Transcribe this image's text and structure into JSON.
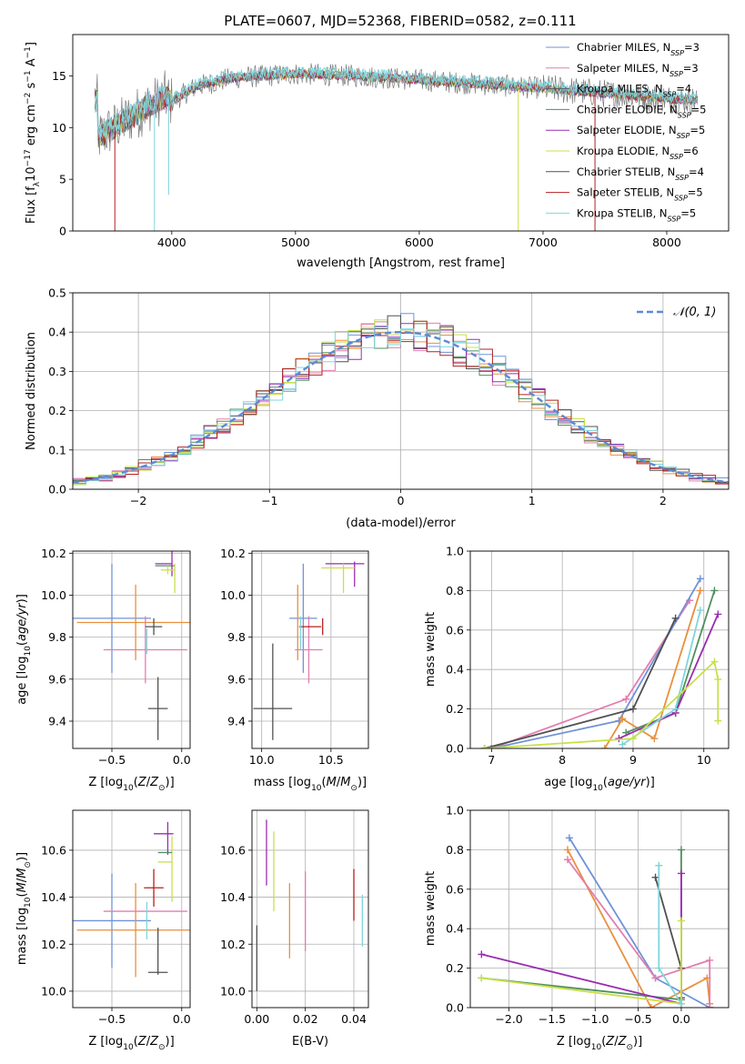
{
  "figure_title": "PLATE=0607, MJD=52368, FIBERID=0582, z=0.111",
  "colors": {
    "Chabrier MILES": "#6f93d8",
    "Salpeter MILES": "#e8903e",
    "Kroupa MILES": "#5a5a5a",
    "Chabrier ELODIE": "#4f8f5f",
    "Salpeter ELODIE": "#9a2db0",
    "Kroupa ELODIE": "#c8e04a",
    "Chabrier STELIB": "#505050",
    "Salpeter STELIB": "#b52020",
    "Kroupa STELIB": "#7fd6dc",
    "pink": "#e37db0",
    "grid": "#b0b0b0"
  },
  "chart_data": [
    {
      "id": "spectrum",
      "type": "line",
      "xlabel": "wavelength [Angstrom, rest frame]",
      "ylabel": "Flux [f_λ 10^-17 erg cm^-2 s^-1 A^-1]",
      "xlim": [
        3200,
        8500
      ],
      "ylim": [
        0,
        19
      ],
      "xticks": [
        4000,
        5000,
        6000,
        7000,
        8000
      ],
      "yticks": [
        0,
        5,
        10,
        15
      ],
      "grid": false,
      "legend_position": "top-right",
      "legend": [
        {
          "label": "Chabrier MILES, N",
          "sub": "SSP",
          "val": "=3",
          "color": "#6f93d8"
        },
        {
          "label": "Salpeter MILES, N",
          "sub": "SSP",
          "val": "=3",
          "color": "#e37db0"
        },
        {
          "label": "Kroupa MILES, N",
          "sub": "SSP",
          "val": "=4",
          "color": "#5a5a5a"
        },
        {
          "label": "Chabrier ELODIE, N",
          "sub": "SSP",
          "val": "=5",
          "color": "#4f8f5f"
        },
        {
          "label": "Salpeter ELODIE, N",
          "sub": "SSP",
          "val": "=5",
          "color": "#9a2db0"
        },
        {
          "label": "Kroupa ELODIE, N",
          "sub": "SSP",
          "val": "=6",
          "color": "#c8e04a"
        },
        {
          "label": "Chabrier STELIB, N",
          "sub": "SSP",
          "val": "=4",
          "color": "#505050"
        },
        {
          "label": "Salpeter STELIB, N",
          "sub": "SSP",
          "val": "=5",
          "color": "#b52020"
        },
        {
          "label": "Kroupa STELIB, N",
          "sub": "SSP",
          "val": "=5",
          "color": "#7fd6dc"
        }
      ],
      "continuum": [
        [
          3400,
          9
        ],
        [
          3600,
          10.5
        ],
        [
          3800,
          12
        ],
        [
          3950,
          13
        ],
        [
          4000,
          12.5
        ],
        [
          4200,
          14
        ],
        [
          4500,
          14.8
        ],
        [
          5000,
          15.2
        ],
        [
          5500,
          15
        ],
        [
          6000,
          14.6
        ],
        [
          6500,
          14.2
        ],
        [
          7000,
          13.8
        ],
        [
          7500,
          13.3
        ],
        [
          8000,
          12.8
        ],
        [
          8250,
          12.6
        ]
      ],
      "dips": [
        {
          "x": 3540,
          "min": 0,
          "color": "#b52020"
        },
        {
          "x": 3860,
          "min": 0,
          "color": "#7fd6dc"
        },
        {
          "x": 3975,
          "min": 3.5,
          "color": "#7fd6dc"
        },
        {
          "x": 6800,
          "min": 0,
          "color": "#c8e04a"
        },
        {
          "x": 7420,
          "min": 0,
          "color": "#b52020"
        }
      ]
    },
    {
      "id": "residuals",
      "type": "bar",
      "xlabel": "(data-model)/error",
      "ylabel": "Normed distribution",
      "xlim": [
        -2.5,
        2.5
      ],
      "ylim": [
        0,
        0.5
      ],
      "xticks": [
        -2,
        -1,
        0,
        1,
        2
      ],
      "yticks": [
        0.0,
        0.1,
        0.2,
        0.3,
        0.4,
        0.5
      ],
      "grid": true,
      "legend_position": "top-right",
      "legend_label": "𝒩(0, 1)",
      "gaussian_color": "#5b8ad6",
      "bin_width": 0.1
    },
    {
      "id": "z_vs_age",
      "type": "scatter",
      "xlabel": "Z [log10(Z/Z⊙)]",
      "ylabel": "age [log10(age/yr)]",
      "xlim": [
        -0.78,
        0.06
      ],
      "ylim": [
        9.27,
        10.21
      ],
      "xticks": [
        -0.5,
        0.0
      ],
      "yticks": [
        9.4,
        9.6,
        9.8,
        10.0,
        10.2
      ],
      "grid": true,
      "points": [
        {
          "x": -0.5,
          "xerr": 0.28,
          "y": 9.89,
          "yerr": 0.26,
          "color": "#6f93d8"
        },
        {
          "x": -0.33,
          "xerr": 0.42,
          "y": 9.87,
          "yerr": 0.18,
          "color": "#e8903e"
        },
        {
          "x": -0.26,
          "xerr": 0.3,
          "y": 9.74,
          "yerr": 0.16,
          "color": "#e37db0"
        },
        {
          "x": -0.25,
          "xerr": 0.0,
          "y": 9.78,
          "yerr": 0.06,
          "color": "#7fd6dc"
        },
        {
          "x": -0.2,
          "xerr": 0.06,
          "y": 9.85,
          "yerr": 0.04,
          "color": "#505050"
        },
        {
          "x": -0.17,
          "xerr": 0.07,
          "y": 9.46,
          "yerr": 0.15,
          "color": "#505050"
        },
        {
          "x": -0.13,
          "xerr": 0.06,
          "y": 10.15,
          "yerr": 0.0,
          "color": "#9a2db0"
        },
        {
          "x": -0.12,
          "xerr": 0.07,
          "y": 10.14,
          "yerr": 0.0,
          "color": "#4f8f5f"
        },
        {
          "x": -0.07,
          "xerr": 0.0,
          "y": 10.15,
          "yerr": 0.06,
          "color": "#9a2db0"
        },
        {
          "x": -0.1,
          "xerr": 0.05,
          "y": 10.12,
          "yerr": 0.02,
          "color": "#c8e04a"
        },
        {
          "x": -0.05,
          "xerr": 0.0,
          "y": 10.08,
          "yerr": 0.07,
          "color": "#c8e04a"
        }
      ]
    },
    {
      "id": "mass_vs_age",
      "type": "scatter",
      "xlabel": "mass [log10(M/M⊙)]",
      "ylabel": "",
      "xlim": [
        9.93,
        10.77
      ],
      "ylim": [
        9.27,
        10.21
      ],
      "xticks": [
        10.0,
        10.5
      ],
      "yticks": [
        9.4,
        9.6,
        9.8,
        10.0,
        10.2
      ],
      "grid": true,
      "points": [
        {
          "x": 10.3,
          "xerr": 0.1,
          "y": 9.89,
          "yerr": 0.26,
          "color": "#6f93d8"
        },
        {
          "x": 10.26,
          "xerr": 0.0,
          "y": 9.87,
          "yerr": 0.18,
          "color": "#e8903e"
        },
        {
          "x": 10.34,
          "xerr": 0.1,
          "y": 9.74,
          "yerr": 0.16,
          "color": "#e37db0"
        },
        {
          "x": 10.35,
          "xerr": 0.08,
          "y": 9.85,
          "yerr": 0.0,
          "color": "#b52020"
        },
        {
          "x": 10.44,
          "xerr": 0.0,
          "y": 9.85,
          "yerr": 0.04,
          "color": "#b52020"
        },
        {
          "x": 10.28,
          "xerr": 0.0,
          "y": 9.82,
          "yerr": 0.08,
          "color": "#7fd6dc"
        },
        {
          "x": 10.08,
          "xerr": 0.14,
          "y": 9.46,
          "yerr": 0.0,
          "color": "#505050"
        },
        {
          "x": 10.08,
          "xerr": 0.0,
          "y": 9.54,
          "yerr": 0.23,
          "color": "#505050"
        },
        {
          "x": 10.6,
          "xerr": 0.14,
          "y": 10.15,
          "yerr": 0.0,
          "color": "#9a2db0"
        },
        {
          "x": 10.67,
          "xerr": 0.0,
          "y": 10.1,
          "yerr": 0.06,
          "color": "#9a2db0"
        },
        {
          "x": 10.55,
          "xerr": 0.12,
          "y": 10.13,
          "yerr": 0.0,
          "color": "#c8e04a"
        },
        {
          "x": 10.59,
          "xerr": 0.0,
          "y": 10.08,
          "yerr": 0.07,
          "color": "#c8e04a"
        }
      ]
    },
    {
      "id": "age_vs_weight",
      "type": "line",
      "xlabel": "age [log10(age/yr)]",
      "ylabel": "mass weight",
      "xlim": [
        6.7,
        10.35
      ],
      "ylim": [
        0.0,
        1.0
      ],
      "xticks": [
        7,
        8,
        9,
        10
      ],
      "yticks": [
        0.0,
        0.2,
        0.4,
        0.6,
        0.8,
        1.0
      ],
      "grid": true,
      "series": [
        {
          "color": "#e37db0",
          "x": [
            7.0,
            8.9,
            9.8
          ],
          "y": [
            0.0,
            0.25,
            0.75
          ]
        },
        {
          "color": "#6f93d8",
          "x": [
            7.0,
            8.8,
            9.95
          ],
          "y": [
            0.0,
            0.14,
            0.86
          ]
        },
        {
          "color": "#e8903e",
          "x": [
            8.6,
            8.85,
            9.3,
            9.95
          ],
          "y": [
            0.0,
            0.15,
            0.05,
            0.8
          ]
        },
        {
          "color": "#505050",
          "x": [
            6.9,
            9.0,
            9.6
          ],
          "y": [
            0.0,
            0.2,
            0.66
          ]
        },
        {
          "color": "#4f8f5f",
          "x": [
            8.9,
            9.6,
            10.15
          ],
          "y": [
            0.08,
            0.18,
            0.8
          ]
        },
        {
          "color": "#9a2db0",
          "x": [
            8.8,
            9.6,
            10.2
          ],
          "y": [
            0.05,
            0.18,
            0.68
          ]
        },
        {
          "color": "#7fd6dc",
          "x": [
            8.85,
            9.6,
            9.95
          ],
          "y": [
            0.02,
            0.2,
            0.7
          ]
        },
        {
          "color": "#c8e04a",
          "x": [
            6.9,
            9.0,
            10.15,
            10.2,
            10.2
          ],
          "y": [
            0.0,
            0.05,
            0.44,
            0.35,
            0.14
          ]
        }
      ]
    },
    {
      "id": "z_vs_mass",
      "type": "scatter",
      "xlabel": "Z [log10(Z/Z⊙)]",
      "ylabel": "mass [log10(M/M⊙)]",
      "xlim": [
        -0.78,
        0.06
      ],
      "ylim": [
        9.93,
        10.77
      ],
      "xticks": [
        -0.5,
        0.0
      ],
      "yticks": [
        10.0,
        10.2,
        10.4,
        10.6
      ],
      "grid": true,
      "points": [
        {
          "x": -0.5,
          "xerr": 0.28,
          "y": 10.3,
          "yerr": 0.2,
          "color": "#6f93d8"
        },
        {
          "x": -0.33,
          "xerr": 0.42,
          "y": 10.26,
          "yerr": 0.2,
          "color": "#e8903e"
        },
        {
          "x": -0.26,
          "xerr": 0.3,
          "y": 10.34,
          "yerr": 0.0,
          "color": "#e37db0"
        },
        {
          "x": -0.25,
          "xerr": 0.0,
          "y": 10.3,
          "yerr": 0.08,
          "color": "#7fd6dc"
        },
        {
          "x": -0.2,
          "xerr": 0.07,
          "y": 10.44,
          "yerr": 0.0,
          "color": "#b52020"
        },
        {
          "x": -0.2,
          "xerr": 0.0,
          "y": 10.44,
          "yerr": 0.08,
          "color": "#b52020"
        },
        {
          "x": -0.17,
          "xerr": 0.07,
          "y": 10.08,
          "yerr": 0.0,
          "color": "#505050"
        },
        {
          "x": -0.17,
          "xerr": 0.0,
          "y": 10.17,
          "yerr": 0.1,
          "color": "#505050"
        },
        {
          "x": -0.13,
          "xerr": 0.07,
          "y": 10.67,
          "yerr": 0.0,
          "color": "#9a2db0"
        },
        {
          "x": -0.1,
          "xerr": 0.0,
          "y": 10.65,
          "yerr": 0.07,
          "color": "#9a2db0"
        },
        {
          "x": -0.12,
          "xerr": 0.05,
          "y": 10.55,
          "yerr": 0.0,
          "color": "#c8e04a"
        },
        {
          "x": -0.07,
          "xerr": 0.0,
          "y": 10.52,
          "yerr": 0.14,
          "color": "#c8e04a"
        },
        {
          "x": -0.12,
          "xerr": 0.05,
          "y": 10.59,
          "yerr": 0.0,
          "color": "#4f8f5f"
        }
      ]
    },
    {
      "id": "ebv_vs_mass",
      "type": "scatter",
      "xlabel": "E(B-V)",
      "ylabel": "",
      "xlim": [
        -0.002,
        0.046
      ],
      "ylim": [
        9.93,
        10.77
      ],
      "xticks": [
        0.0,
        0.02,
        0.04
      ],
      "xticklabels": [
        "0.00",
        "0.02",
        "0.04"
      ],
      "yticks": [
        10.0,
        10.2,
        10.4,
        10.6
      ],
      "grid": true,
      "points": [
        {
          "x": 0.0,
          "xerr": 0.0,
          "y": 10.14,
          "yerr": 0.14,
          "color": "#505050"
        },
        {
          "x": 0.004,
          "xerr": 0.0,
          "y": 10.59,
          "yerr": 0.14,
          "color": "#9a2db0"
        },
        {
          "x": 0.007,
          "xerr": 0.0,
          "y": 10.51,
          "yerr": 0.17,
          "color": "#c8e04a"
        },
        {
          "x": 0.0135,
          "xerr": 0.0,
          "y": 10.3,
          "yerr": 0.16,
          "color": "#e8903e"
        },
        {
          "x": 0.02,
          "xerr": 0.0,
          "y": 10.34,
          "yerr": 0.17,
          "color": "#e37db0"
        },
        {
          "x": 0.04,
          "xerr": 0.0,
          "y": 10.41,
          "yerr": 0.11,
          "color": "#b52020"
        },
        {
          "x": 0.0435,
          "xerr": 0.0,
          "y": 10.3,
          "yerr": 0.11,
          "color": "#7fd6dc"
        }
      ]
    },
    {
      "id": "z_vs_weight",
      "type": "line",
      "xlabel": "Z [log10(Z/Z⊙)]",
      "ylabel": "mass weight",
      "xlim": [
        -2.45,
        0.55
      ],
      "ylim": [
        0.0,
        1.0
      ],
      "xticks": [
        -2.0,
        -1.5,
        -1.0,
        -0.5,
        0.0
      ],
      "yticks": [
        0.0,
        0.2,
        0.4,
        0.6,
        0.8,
        1.0
      ],
      "grid": true,
      "series": [
        {
          "color": "#6f93d8",
          "x": [
            -1.3,
            -0.3,
            0.33
          ],
          "y": [
            0.86,
            0.15,
            0.0
          ]
        },
        {
          "color": "#e8903e",
          "x": [
            -1.32,
            -0.35,
            0.3,
            0.33
          ],
          "y": [
            0.8,
            0.0,
            0.15,
            0.02
          ]
        },
        {
          "color": "#e37db0",
          "x": [
            -1.32,
            -0.3,
            0.33,
            0.33
          ],
          "y": [
            0.75,
            0.15,
            0.24,
            0.0
          ]
        },
        {
          "color": "#505050",
          "x": [
            -0.3,
            0.0,
            0.0
          ],
          "y": [
            0.66,
            0.2,
            0.05
          ]
        },
        {
          "color": "#4f8f5f",
          "x": [
            -2.32,
            0.0,
            0.0
          ],
          "y": [
            0.15,
            0.04,
            0.8
          ]
        },
        {
          "color": "#9a2db0",
          "x": [
            -2.32,
            0.0,
            0.0
          ],
          "y": [
            0.27,
            0.02,
            0.68
          ]
        },
        {
          "color": "#c8e04a",
          "x": [
            -2.32,
            0.0,
            0.0
          ],
          "y": [
            0.15,
            0.02,
            0.44
          ]
        },
        {
          "color": "#7fd6dc",
          "x": [
            -0.26,
            -0.26,
            0.0
          ],
          "y": [
            0.72,
            0.2,
            0.02
          ]
        }
      ]
    }
  ]
}
